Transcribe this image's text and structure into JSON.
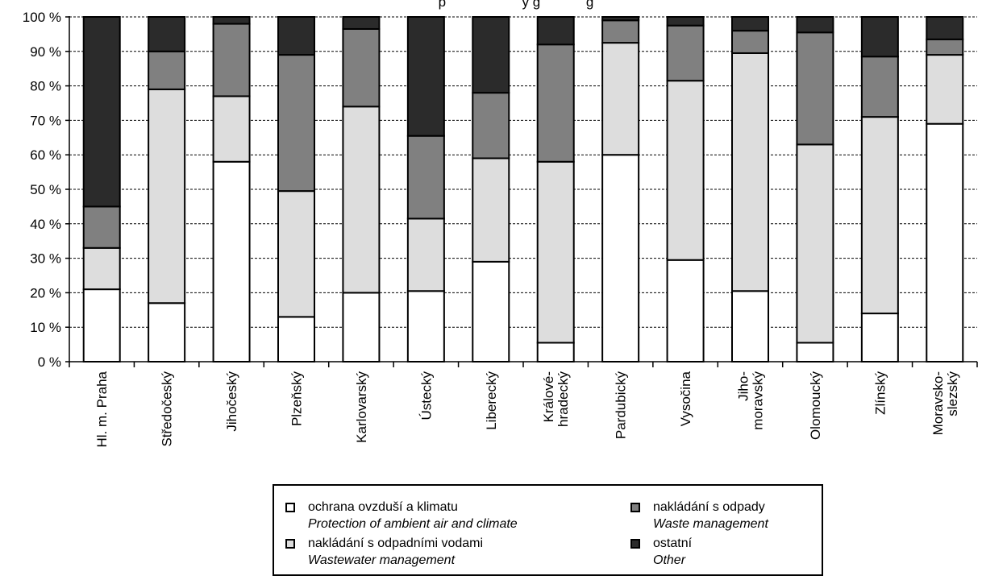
{
  "chart_data": {
    "type": "bar",
    "stacked": true,
    "title": "p                    y g            g",
    "categories": [
      "Hl. m. Praha",
      "Středočeský",
      "Jihočeský",
      "Plzeňský",
      "Karlovarský",
      "Ústecký",
      "Liberecký",
      "Králové-hradecký",
      "Pardubický",
      "Vysočina",
      "Jiho-moravský",
      "Olomoucký",
      "Zlínský",
      "Moravsko-slezský"
    ],
    "category_lines": [
      [
        "Hl. m. Praha"
      ],
      [
        "Středočeský"
      ],
      [
        "Jihočeský"
      ],
      [
        "Plzeňský"
      ],
      [
        "Karlovarský"
      ],
      [
        "Ústecký"
      ],
      [
        "Liberecký"
      ],
      [
        "Králové-",
        "hradecký"
      ],
      [
        "Pardubický"
      ],
      [
        "Vysočina"
      ],
      [
        "Jiho-",
        "moravský"
      ],
      [
        "Olomoucký"
      ],
      [
        "Zlínský"
      ],
      [
        "Moravsko-",
        "slezský"
      ]
    ],
    "series": [
      {
        "name": "ochrana ovzduší a klimatu",
        "name_en": "Protection of ambient air and climate",
        "color": "#ffffff",
        "values": [
          21,
          17,
          58,
          13,
          20,
          20.5,
          29,
          5.5,
          60,
          29.5,
          20.5,
          5.5,
          14,
          69
        ]
      },
      {
        "name": "nakládání s odpadními vodami",
        "name_en": "Wastewater management",
        "color": "#dddddd",
        "values": [
          12,
          62,
          19,
          36.5,
          54,
          21,
          30,
          52.5,
          32.5,
          52,
          69,
          57.5,
          57,
          20
        ]
      },
      {
        "name": "nakládání s odpady",
        "name_en": "Waste management",
        "color": "#808080",
        "values": [
          12,
          11,
          21,
          39.5,
          22.5,
          24,
          19,
          34,
          6.5,
          16,
          6.5,
          32.5,
          17.5,
          4.5
        ]
      },
      {
        "name": "ostatní",
        "name_en": "Other",
        "color": "#2b2b2b",
        "values": [
          55,
          10,
          2,
          11,
          3.5,
          34.5,
          22,
          8,
          1,
          2.5,
          4,
          4.5,
          11.5,
          6.5
        ]
      }
    ],
    "ylim": [
      0,
      100
    ],
    "yticks": [
      "0 %",
      "10 %",
      "20 %",
      "30 %",
      "40 %",
      "50 %",
      "60 %",
      "70 %",
      "80 %",
      "90 %",
      "100 %"
    ],
    "grid": "dashed horizontal",
    "legend_position": "bottom"
  }
}
